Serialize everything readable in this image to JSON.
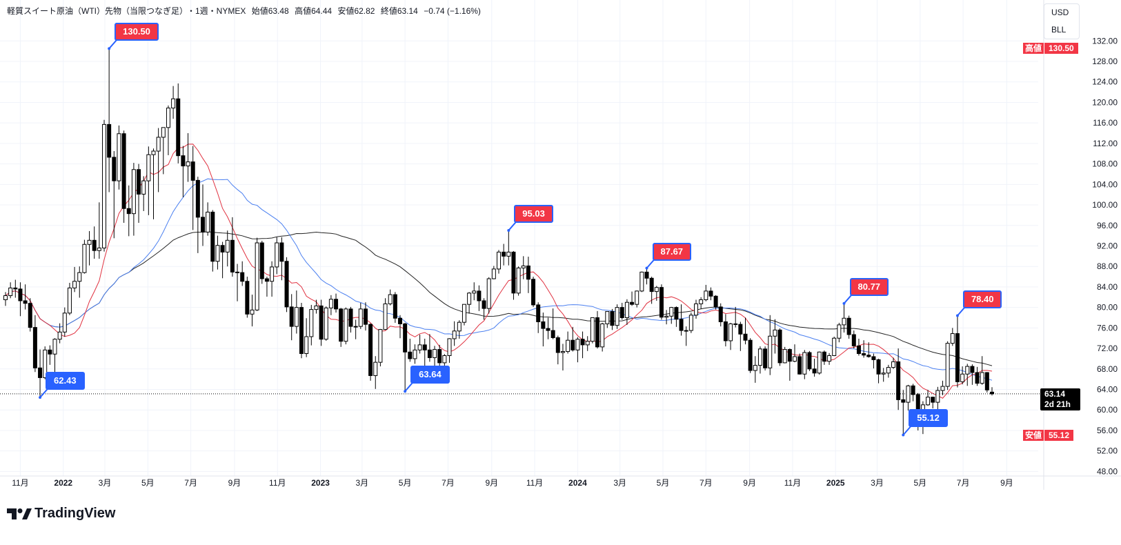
{
  "header": {
    "symbol": "軽質スイート原油（WTI）先物（当限つなぎ足）",
    "interval": "・1週・NYMEX",
    "open": "始値63.48",
    "high": "高値64.44",
    "low": "安値62.82",
    "close": "終値63.14",
    "change": "−0.74 (−1.16%)"
  },
  "unit_box": {
    "currency": "USD",
    "unit": "BLL"
  },
  "axis_tags": {
    "high_label": "高値",
    "high_value": "130.50",
    "low_label": "安値",
    "low_value": "55.12",
    "last_price": "63.14",
    "countdown": "2d 21h"
  },
  "footer": {
    "brand": "TradingView"
  },
  "colors": {
    "up_body": "#ffffff",
    "down_body": "#000000",
    "ma_fast": "#e0303f",
    "ma_mid": "#4a7ff0",
    "ma_slow": "#222222",
    "callout_high": "#f23645",
    "callout_low": "#2962ff",
    "grid": "#f0f3fa"
  },
  "chart_data": {
    "type": "candlestick",
    "interval": "1週",
    "first_week": "2021-10-11",
    "ylim": [
      48,
      132
    ],
    "y_ticks": [
      "48.00",
      "52.00",
      "56.00",
      "60.00",
      "64.00",
      "68.00",
      "72.00",
      "76.00",
      "80.00",
      "84.00",
      "88.00",
      "92.00",
      "96.00",
      "100.00",
      "104.00",
      "108.00",
      "112.00",
      "116.00",
      "120.00",
      "124.00",
      "128.00",
      "132.00"
    ],
    "x_ticks": [
      {
        "label": "11月",
        "date": "2021-11-01"
      },
      {
        "label": "2022",
        "date": "2022-01-01"
      },
      {
        "label": "3月",
        "date": "2022-03-01"
      },
      {
        "label": "5月",
        "date": "2022-05-01"
      },
      {
        "label": "7月",
        "date": "2022-07-01"
      },
      {
        "label": "9月",
        "date": "2022-09-01"
      },
      {
        "label": "11月",
        "date": "2022-11-01"
      },
      {
        "label": "2023",
        "date": "2023-01-01"
      },
      {
        "label": "3月",
        "date": "2023-03-01"
      },
      {
        "label": "5月",
        "date": "2023-05-01"
      },
      {
        "label": "7月",
        "date": "2023-07-01"
      },
      {
        "label": "9月",
        "date": "2023-09-01"
      },
      {
        "label": "11月",
        "date": "2023-11-01"
      },
      {
        "label": "2024",
        "date": "2024-01-01"
      },
      {
        "label": "3月",
        "date": "2024-03-01"
      },
      {
        "label": "5月",
        "date": "2024-05-01"
      },
      {
        "label": "7月",
        "date": "2024-07-01"
      },
      {
        "label": "9月",
        "date": "2024-09-01"
      },
      {
        "label": "11月",
        "date": "2024-11-01"
      },
      {
        "label": "2025",
        "date": "2025-01-01"
      },
      {
        "label": "3月",
        "date": "2025-03-01"
      },
      {
        "label": "5月",
        "date": "2025-05-01"
      },
      {
        "label": "7月",
        "date": "2025-07-01"
      },
      {
        "label": "9月",
        "date": "2025-09-01"
      }
    ],
    "last_price": 63.14,
    "callouts": [
      {
        "week": 21,
        "value": "130.50",
        "price": 130.5,
        "kind": "high"
      },
      {
        "week": 7,
        "value": "62.43",
        "price": 62.43,
        "kind": "low"
      },
      {
        "week": 81,
        "value": "63.64",
        "price": 63.64,
        "kind": "low"
      },
      {
        "week": 102,
        "value": "95.03",
        "price": 95.03,
        "kind": "high"
      },
      {
        "week": 130,
        "value": "87.67",
        "price": 87.67,
        "kind": "high"
      },
      {
        "week": 170,
        "value": "80.77",
        "price": 80.77,
        "kind": "high"
      },
      {
        "week": 182,
        "value": "55.12",
        "price": 55.12,
        "kind": "low"
      },
      {
        "week": 193,
        "value": "78.40",
        "price": 78.4,
        "kind": "high"
      }
    ],
    "ohlc": [
      [
        81.5,
        83.0,
        80.3,
        82.3
      ],
      [
        82.3,
        84.9,
        81.8,
        83.8
      ],
      [
        83.8,
        85.4,
        81.9,
        83.6
      ],
      [
        83.6,
        84.9,
        78.3,
        81.3
      ],
      [
        81.3,
        84.5,
        79.6,
        80.8
      ],
      [
        80.8,
        81.8,
        75.3,
        76.1
      ],
      [
        76.1,
        78.5,
        67.4,
        68.2
      ],
      [
        68.2,
        71.8,
        62.43,
        66.3
      ],
      [
        66.3,
        72.4,
        66.0,
        71.7
      ],
      [
        71.7,
        72.6,
        68.8,
        70.9
      ],
      [
        70.9,
        74.0,
        66.1,
        73.8
      ],
      [
        73.8,
        76.9,
        73.0,
        75.2
      ],
      [
        75.2,
        80.0,
        74.3,
        78.9
      ],
      [
        78.9,
        84.8,
        78.5,
        83.8
      ],
      [
        83.8,
        87.9,
        83.0,
        85.1
      ],
      [
        85.1,
        88.0,
        81.9,
        86.8
      ],
      [
        86.8,
        93.2,
        86.6,
        92.3
      ],
      [
        92.3,
        94.9,
        88.2,
        93.1
      ],
      [
        93.1,
        95.8,
        89.5,
        91.1
      ],
      [
        91.1,
        100.5,
        89.5,
        91.6
      ],
      [
        91.6,
        116.6,
        90.9,
        115.7
      ],
      [
        115.7,
        130.5,
        102.5,
        109.3
      ],
      [
        109.3,
        110.5,
        93.5,
        104.7
      ],
      [
        104.7,
        115.5,
        103.0,
        113.9
      ],
      [
        113.9,
        114.5,
        96.5,
        99.3
      ],
      [
        99.3,
        103.8,
        93.9,
        98.3
      ],
      [
        98.3,
        108.2,
        94.0,
        106.9
      ],
      [
        106.9,
        108.0,
        96.5,
        102.1
      ],
      [
        102.1,
        105.6,
        98.8,
        104.7
      ],
      [
        104.7,
        111.4,
        98.0,
        109.8
      ],
      [
        109.8,
        111.0,
        97.2,
        110.5
      ],
      [
        110.5,
        115.0,
        102.5,
        113.2
      ],
      [
        113.2,
        115.1,
        106.0,
        115.1
      ],
      [
        115.1,
        119.4,
        109.7,
        118.9
      ],
      [
        118.9,
        123.2,
        116.8,
        120.7
      ],
      [
        120.7,
        123.7,
        108.1,
        109.6
      ],
      [
        109.6,
        111.5,
        101.5,
        107.6
      ],
      [
        107.6,
        114.0,
        104.5,
        108.4
      ],
      [
        108.4,
        111.5,
        95.1,
        104.8
      ],
      [
        104.8,
        105.5,
        90.6,
        97.6
      ],
      [
        97.6,
        104.0,
        92.0,
        94.7
      ],
      [
        94.7,
        100.5,
        94.0,
        98.6
      ],
      [
        98.6,
        99.0,
        87.0,
        89.0
      ],
      [
        89.0,
        94.0,
        87.4,
        92.1
      ],
      [
        92.1,
        92.8,
        85.7,
        90.8
      ],
      [
        90.8,
        95.0,
        88.0,
        93.1
      ],
      [
        93.1,
        97.6,
        86.0,
        86.9
      ],
      [
        86.9,
        88.5,
        81.2,
        86.8
      ],
      [
        86.8,
        89.0,
        84.2,
        85.1
      ],
      [
        85.1,
        86.0,
        78.0,
        78.7
      ],
      [
        78.7,
        82.5,
        76.3,
        79.5
      ],
      [
        79.5,
        93.6,
        79.3,
        92.6
      ],
      [
        92.6,
        93.0,
        84.6,
        85.6
      ],
      [
        85.6,
        86.0,
        82.1,
        85.1
      ],
      [
        85.1,
        89.0,
        82.1,
        87.9
      ],
      [
        87.9,
        93.7,
        86.5,
        92.6
      ],
      [
        92.6,
        93.7,
        85.3,
        89.0
      ],
      [
        89.0,
        89.8,
        79.1,
        80.1
      ],
      [
        80.1,
        82.6,
        73.6,
        76.3
      ],
      [
        76.3,
        83.3,
        74.9,
        80.0
      ],
      [
        80.0,
        80.9,
        70.1,
        71.0
      ],
      [
        71.0,
        77.9,
        70.3,
        74.3
      ],
      [
        74.3,
        80.5,
        72.6,
        79.6
      ],
      [
        79.6,
        81.5,
        78.8,
        80.3
      ],
      [
        80.3,
        81.5,
        72.5,
        73.8
      ],
      [
        73.8,
        80.2,
        73.5,
        79.9
      ],
      [
        79.9,
        82.4,
        78.5,
        81.6
      ],
      [
        81.6,
        82.7,
        79.0,
        79.7
      ],
      [
        79.7,
        79.9,
        72.3,
        73.4
      ],
      [
        73.4,
        80.0,
        72.8,
        79.7
      ],
      [
        79.7,
        80.1,
        75.1,
        76.3
      ],
      [
        76.3,
        77.6,
        73.8,
        76.3
      ],
      [
        76.3,
        80.9,
        75.8,
        79.7
      ],
      [
        79.7,
        81.0,
        75.5,
        76.7
      ],
      [
        76.7,
        76.9,
        65.7,
        66.7
      ],
      [
        66.7,
        70.5,
        64.1,
        69.3
      ],
      [
        69.3,
        75.8,
        68.5,
        75.7
      ],
      [
        75.7,
        81.8,
        75.6,
        80.7
      ],
      [
        80.7,
        83.5,
        80.4,
        82.5
      ],
      [
        82.5,
        83.0,
        77.0,
        77.9
      ],
      [
        77.9,
        78.5,
        74.0,
        76.8
      ],
      [
        76.8,
        77.0,
        63.64,
        71.3
      ],
      [
        71.3,
        73.9,
        69.4,
        70.0
      ],
      [
        70.0,
        72.8,
        69.0,
        71.7
      ],
      [
        71.7,
        74.7,
        71.0,
        72.7
      ],
      [
        72.7,
        73.9,
        67.0,
        71.7
      ],
      [
        71.7,
        74.8,
        69.4,
        70.2
      ],
      [
        70.2,
        72.5,
        66.8,
        71.8
      ],
      [
        71.8,
        72.7,
        67.1,
        69.2
      ],
      [
        69.2,
        70.9,
        67.0,
        70.6
      ],
      [
        70.6,
        74.0,
        69.2,
        73.9
      ],
      [
        73.9,
        77.3,
        72.5,
        75.4
      ],
      [
        75.4,
        77.5,
        73.9,
        77.1
      ],
      [
        77.1,
        80.2,
        76.5,
        80.6
      ],
      [
        80.6,
        83.0,
        78.8,
        82.8
      ],
      [
        82.8,
        84.9,
        81.4,
        83.2
      ],
      [
        83.2,
        84.3,
        79.3,
        81.3
      ],
      [
        81.3,
        81.8,
        77.6,
        79.8
      ],
      [
        79.8,
        85.9,
        78.8,
        85.6
      ],
      [
        85.6,
        88.1,
        85.5,
        87.5
      ],
      [
        87.5,
        91.2,
        86.6,
        90.8
      ],
      [
        90.8,
        92.4,
        88.2,
        90.0
      ],
      [
        90.0,
        95.03,
        88.2,
        90.8
      ],
      [
        90.8,
        91.0,
        81.5,
        82.8
      ],
      [
        82.8,
        88.0,
        82.3,
        87.7
      ],
      [
        87.7,
        90.0,
        85.5,
        88.1
      ],
      [
        88.1,
        89.9,
        82.8,
        85.5
      ],
      [
        85.5,
        86.0,
        80.1,
        80.5
      ],
      [
        80.5,
        81.0,
        75.0,
        77.2
      ],
      [
        77.2,
        79.0,
        72.4,
        75.9
      ],
      [
        75.9,
        78.0,
        73.8,
        75.5
      ],
      [
        75.5,
        79.8,
        73.8,
        74.1
      ],
      [
        74.1,
        74.5,
        68.9,
        71.2
      ],
      [
        71.2,
        72.9,
        67.7,
        71.4
      ],
      [
        71.4,
        75.3,
        71.0,
        73.6
      ],
      [
        73.6,
        76.2,
        71.4,
        71.7
      ],
      [
        71.7,
        74.2,
        69.3,
        73.8
      ],
      [
        73.8,
        75.3,
        70.1,
        72.7
      ],
      [
        72.7,
        74.4,
        71.5,
        73.4
      ],
      [
        73.4,
        78.0,
        73.0,
        78.0
      ],
      [
        78.0,
        79.3,
        72.0,
        72.3
      ],
      [
        72.3,
        77.0,
        71.4,
        76.8
      ],
      [
        76.8,
        79.2,
        76.0,
        79.2
      ],
      [
        79.2,
        79.7,
        75.6,
        76.5
      ],
      [
        76.5,
        80.6,
        75.8,
        80.0
      ],
      [
        80.0,
        80.9,
        77.6,
        78.0
      ],
      [
        78.0,
        81.6,
        76.6,
        81.0
      ],
      [
        81.0,
        83.1,
        80.3,
        80.6
      ],
      [
        80.6,
        83.3,
        80.0,
        83.2
      ],
      [
        83.2,
        87.0,
        83.0,
        86.9
      ],
      [
        86.9,
        87.67,
        84.5,
        85.7
      ],
      [
        85.7,
        86.0,
        80.7,
        83.1
      ],
      [
        83.1,
        84.2,
        81.3,
        83.9
      ],
      [
        83.9,
        84.5,
        77.6,
        78.1
      ],
      [
        78.1,
        79.5,
        76.7,
        78.3
      ],
      [
        78.3,
        80.1,
        76.8,
        80.0
      ],
      [
        80.0,
        80.2,
        76.2,
        77.7
      ],
      [
        77.7,
        80.6,
        74.5,
        75.5
      ],
      [
        75.5,
        76.3,
        72.5,
        75.5
      ],
      [
        75.5,
        79.0,
        75.0,
        78.5
      ],
      [
        78.5,
        81.5,
        77.8,
        80.7
      ],
      [
        80.7,
        82.0,
        79.7,
        81.5
      ],
      [
        81.5,
        84.4,
        81.2,
        83.2
      ],
      [
        83.2,
        83.9,
        81.4,
        82.2
      ],
      [
        82.2,
        82.4,
        79.6,
        80.1
      ],
      [
        80.1,
        80.8,
        76.3,
        77.2
      ],
      [
        77.2,
        78.7,
        72.4,
        73.5
      ],
      [
        73.5,
        77.0,
        71.7,
        76.8
      ],
      [
        76.8,
        80.1,
        76.1,
        76.7
      ],
      [
        76.7,
        77.2,
        71.5,
        74.8
      ],
      [
        74.8,
        78.0,
        72.8,
        73.6
      ],
      [
        73.6,
        74.0,
        67.2,
        67.7
      ],
      [
        67.7,
        70.5,
        65.3,
        68.7
      ],
      [
        68.7,
        72.4,
        67.1,
        71.9
      ],
      [
        71.9,
        72.4,
        67.7,
        68.2
      ],
      [
        68.2,
        78.5,
        66.8,
        74.4
      ],
      [
        74.4,
        77.7,
        71.0,
        75.6
      ],
      [
        75.6,
        75.9,
        68.6,
        69.2
      ],
      [
        69.2,
        72.3,
        69.1,
        71.8
      ],
      [
        71.8,
        72.0,
        65.7,
        69.5
      ],
      [
        69.5,
        72.8,
        69.3,
        70.4
      ],
      [
        70.4,
        71.0,
        66.9,
        67.0
      ],
      [
        67.0,
        71.7,
        66.0,
        71.2
      ],
      [
        71.2,
        71.5,
        67.6,
        68.0
      ],
      [
        68.0,
        70.0,
        66.5,
        67.2
      ],
      [
        67.2,
        71.4,
        66.9,
        71.3
      ],
      [
        71.3,
        71.6,
        68.8,
        69.5
      ],
      [
        69.5,
        71.1,
        68.8,
        70.6
      ],
      [
        70.6,
        74.3,
        70.5,
        74.0
      ],
      [
        74.0,
        77.0,
        73.2,
        76.6
      ],
      [
        76.6,
        80.77,
        75.1,
        77.9
      ],
      [
        77.9,
        78.4,
        73.9,
        74.7
      ],
      [
        74.7,
        75.5,
        72.0,
        72.5
      ],
      [
        72.5,
        73.9,
        70.6,
        71.0
      ],
      [
        71.0,
        73.6,
        70.2,
        70.7
      ],
      [
        70.7,
        73.2,
        70.2,
        70.4
      ],
      [
        70.4,
        71.0,
        68.1,
        69.8
      ],
      [
        69.8,
        70.0,
        65.2,
        67.0
      ],
      [
        67.0,
        68.2,
        65.5,
        67.2
      ],
      [
        67.2,
        68.8,
        66.3,
        68.3
      ],
      [
        68.3,
        70.2,
        68.0,
        69.4
      ],
      [
        69.4,
        72.0,
        60.0,
        62.0
      ],
      [
        62.0,
        63.9,
        55.12,
        61.5
      ],
      [
        61.5,
        64.9,
        59.9,
        64.7
      ],
      [
        64.7,
        65.1,
        61.7,
        63.0
      ],
      [
        63.0,
        63.3,
        56.0,
        58.3
      ],
      [
        58.3,
        61.7,
        55.3,
        61.0
      ],
      [
        61.0,
        63.9,
        60.8,
        62.5
      ],
      [
        62.5,
        62.6,
        60.3,
        61.5
      ],
      [
        61.5,
        64.5,
        60.1,
        63.8
      ],
      [
        63.8,
        65.7,
        62.9,
        64.6
      ],
      [
        64.6,
        73.4,
        63.9,
        73.0
      ],
      [
        73.0,
        76.0,
        72.5,
        74.9
      ],
      [
        74.9,
        78.4,
        64.4,
        65.5
      ],
      [
        65.5,
        68.5,
        65.0,
        67.0
      ],
      [
        67.0,
        69.0,
        64.7,
        68.5
      ],
      [
        68.5,
        68.9,
        64.9,
        67.3
      ],
      [
        67.3,
        68.4,
        64.7,
        65.2
      ],
      [
        65.2,
        70.5,
        64.9,
        67.3
      ],
      [
        67.3,
        67.4,
        63.4,
        63.9
      ],
      [
        63.48,
        64.44,
        62.82,
        63.14
      ]
    ]
  }
}
